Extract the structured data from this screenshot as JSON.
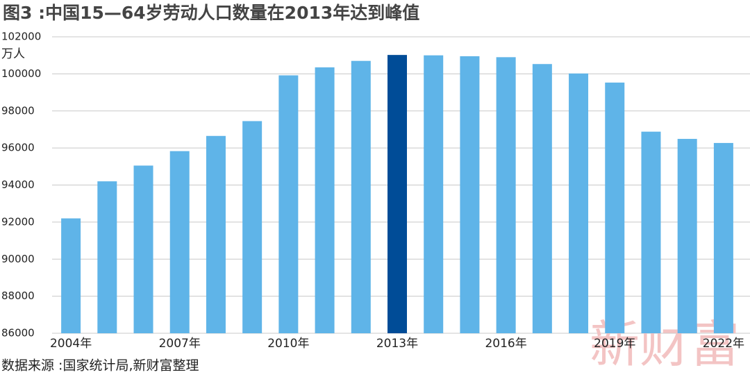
{
  "chart_data": {
    "type": "bar",
    "title": "图3 :中国15—64岁劳动人口数量在2013年达到峰值",
    "y_label": "万人",
    "source": "数据来源 :国家统计局,新财富整理",
    "watermark": "新财富",
    "categories": [
      "2004年",
      null,
      null,
      "2007年",
      null,
      null,
      "2010年",
      null,
      null,
      "2013年",
      null,
      null,
      "2016年",
      null,
      null,
      "2019年",
      null,
      null,
      "2022年"
    ],
    "values": [
      92200,
      94200,
      95050,
      95830,
      96650,
      97450,
      99920,
      100350,
      100700,
      101020,
      101000,
      100950,
      100900,
      100530,
      100020,
      99530,
      96880,
      96490,
      96270
    ],
    "colors": [
      "#5fb4e8",
      "#5fb4e8",
      "#5fb4e8",
      "#5fb4e8",
      "#5fb4e8",
      "#5fb4e8",
      "#5fb4e8",
      "#5fb4e8",
      "#5fb4e8",
      "#004c97",
      "#5fb4e8",
      "#5fb4e8",
      "#5fb4e8",
      "#5fb4e8",
      "#5fb4e8",
      "#5fb4e8",
      "#5fb4e8",
      "#5fb4e8",
      "#5fb4e8"
    ],
    "ylim": [
      86000,
      102000
    ],
    "yticks": [
      86000,
      88000,
      90000,
      92000,
      94000,
      96000,
      98000,
      100000,
      102000
    ],
    "grid": true
  }
}
